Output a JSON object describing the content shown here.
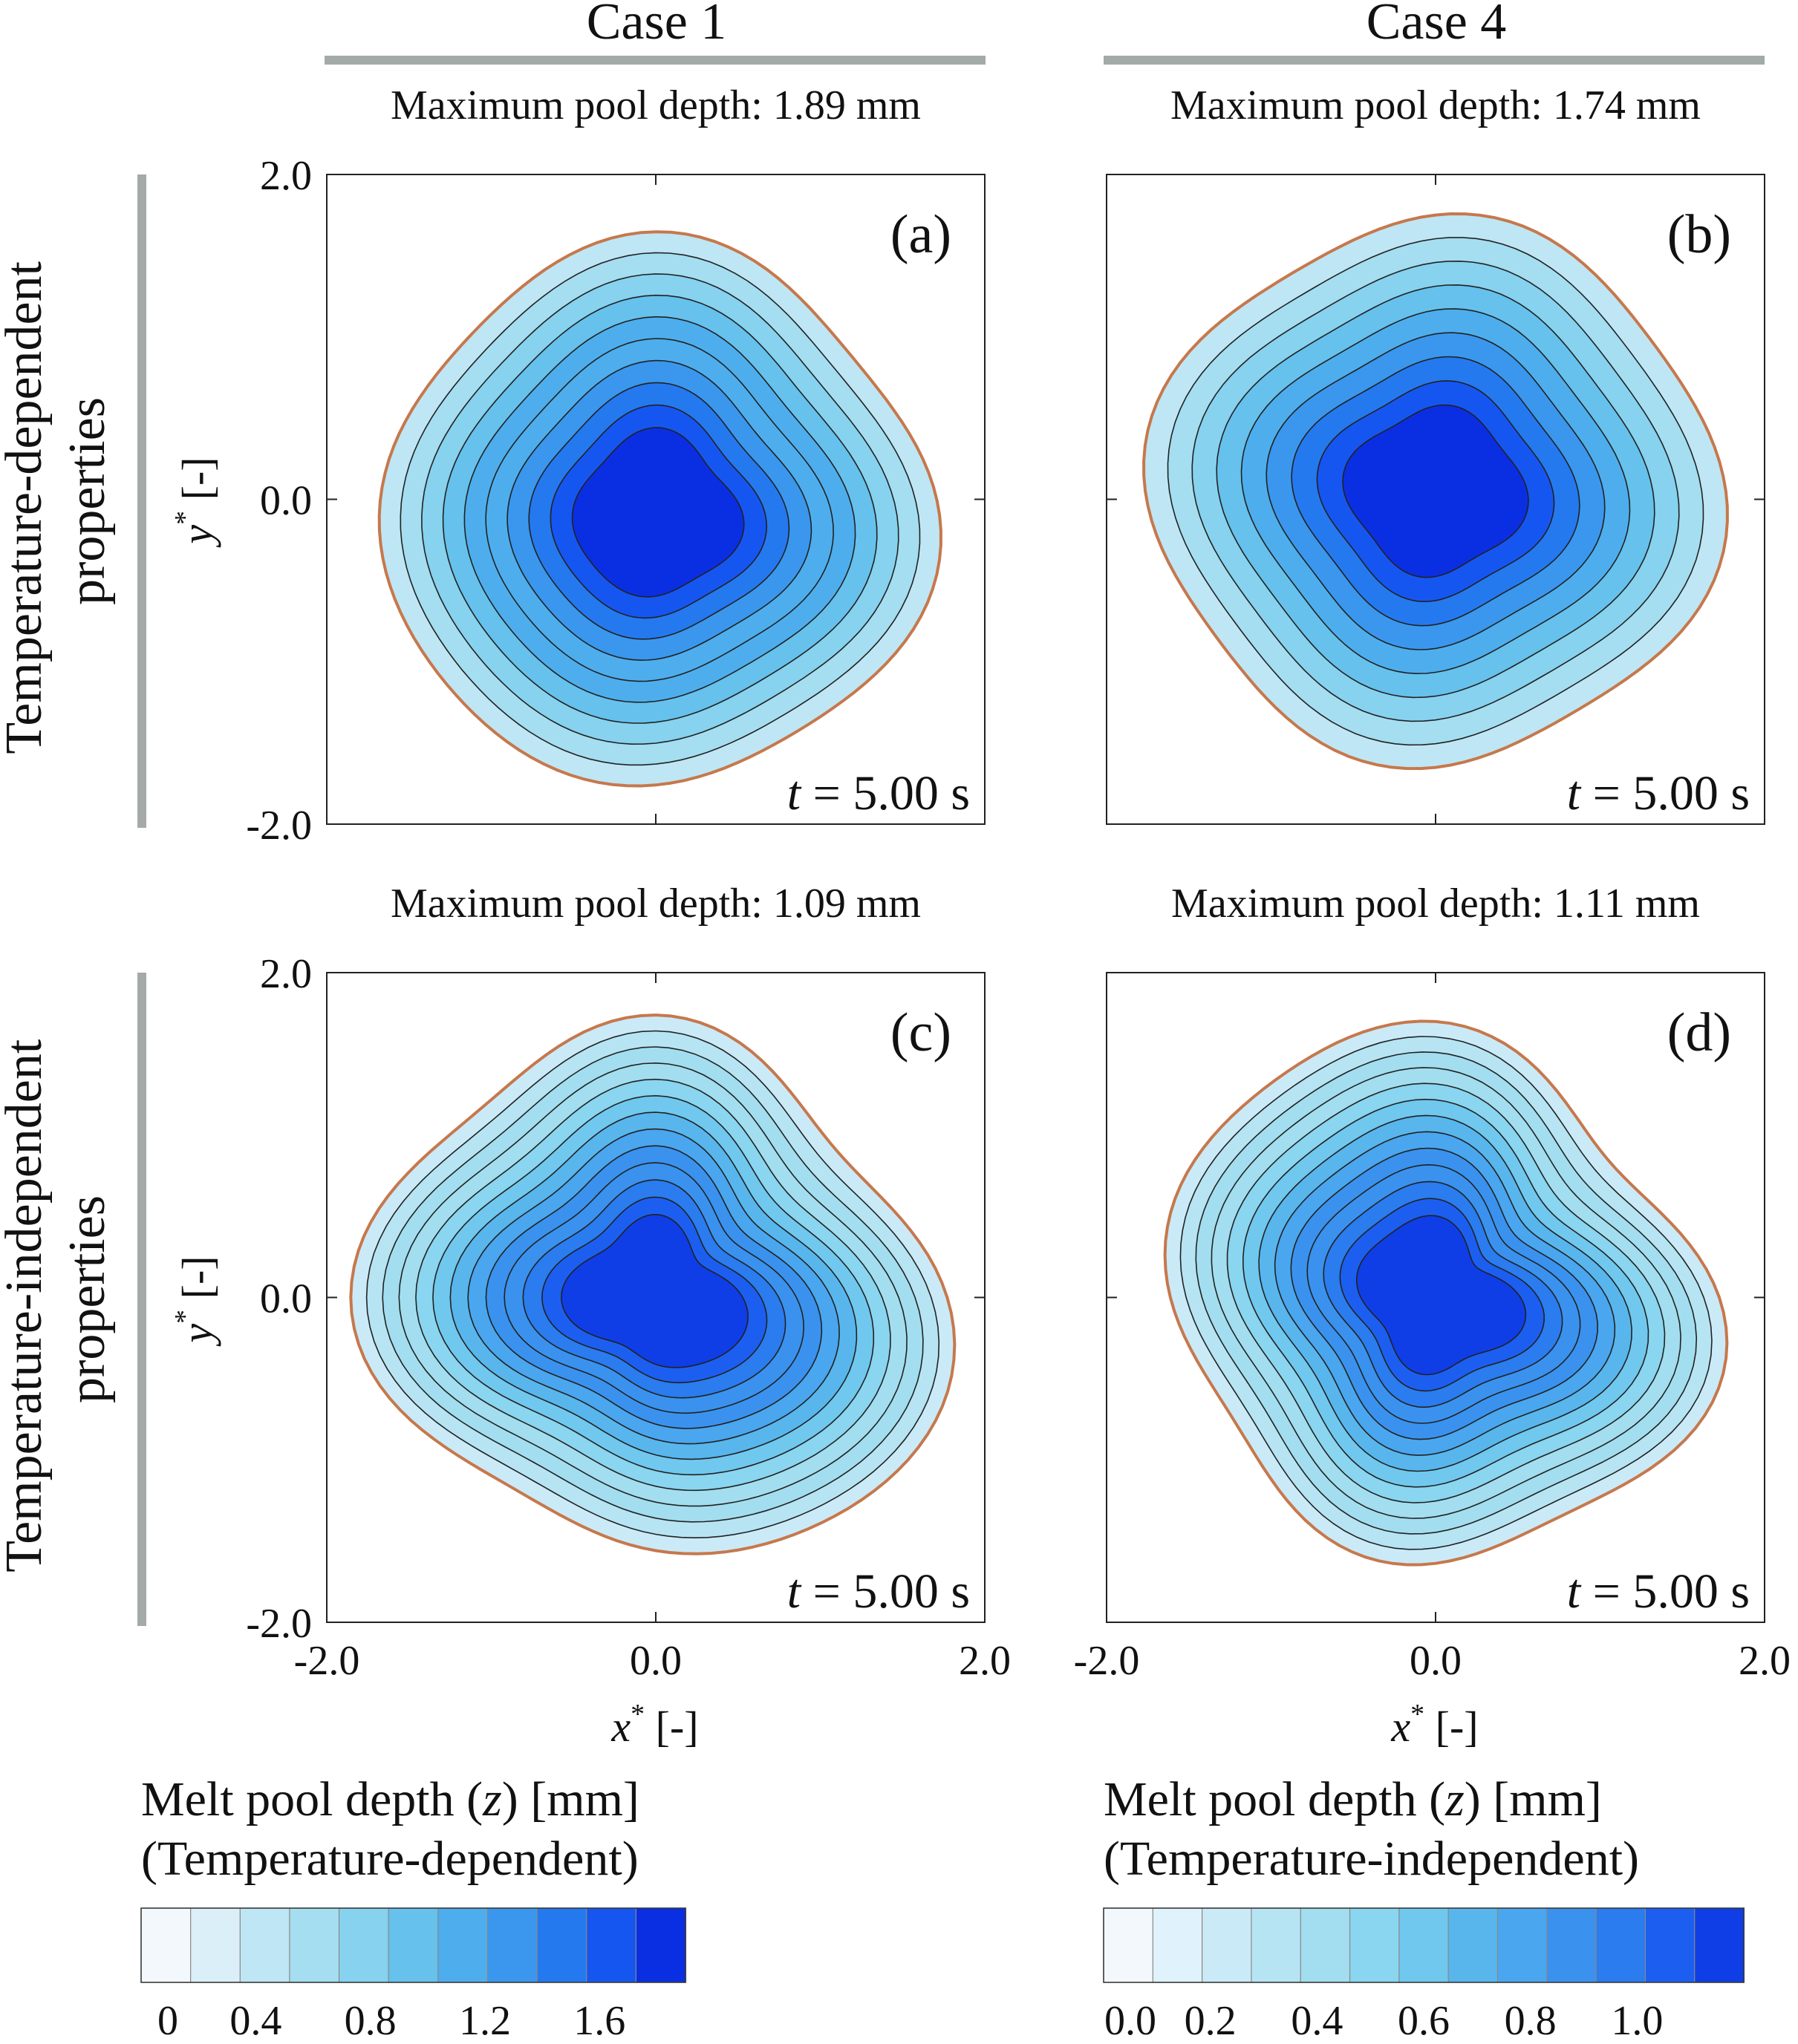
{
  "figure": {
    "columns": [
      {
        "id": "case1",
        "header": "Case 1"
      },
      {
        "id": "case4",
        "header": "Case 4"
      }
    ],
    "rows": [
      {
        "id": "td",
        "label_line1": "Temperature-dependent",
        "label_line2": "properties"
      },
      {
        "id": "ti",
        "label_line1": "Temperature-independent",
        "label_line2": "properties"
      }
    ],
    "axes": {
      "ylabel_symbol": "y",
      "ylabel_sup": "*",
      "ylabel_unit": " [-]",
      "xlabel_symbol": "x",
      "xlabel_sup": "*",
      "xlabel_unit": " [-]",
      "y_ticks": [
        "2.0",
        "0.0",
        "-2.0"
      ],
      "x_ticks": [
        "-2.0",
        "0.0",
        "2.0"
      ]
    }
  },
  "chart_data": [
    {
      "type": "filled-contour",
      "panel": "(a)",
      "title": "Maximum pool depth: 1.89 mm",
      "max_depth_mm": 1.89,
      "time_label": "t = 5.00 s",
      "time_symbol": "t",
      "time_text": " = 5.00 s",
      "xlim": [
        -2.0,
        2.0
      ],
      "ylim": [
        -2.0,
        2.0
      ],
      "center": [
        0.0,
        -0.1
      ],
      "outer_radius": 1.65,
      "colorbar": "temperature-dependent",
      "levels_count": 10
    },
    {
      "type": "filled-contour",
      "panel": "(b)",
      "title": "Maximum pool depth: 1.74 mm",
      "max_depth_mm": 1.74,
      "time_label": "t = 5.00 s",
      "time_symbol": "t",
      "time_text": " = 5.00 s",
      "xlim": [
        -2.0,
        2.0
      ],
      "ylim": [
        -2.0,
        2.0
      ],
      "center": [
        0.0,
        0.05
      ],
      "outer_radius": 1.68,
      "colorbar": "temperature-dependent",
      "levels_count": 9
    },
    {
      "type": "filled-contour",
      "panel": "(c)",
      "title": "Maximum pool depth: 1.09 mm",
      "max_depth_mm": 1.09,
      "time_label": "t = 5.00 s",
      "time_symbol": "t",
      "time_text": " = 5.00 s",
      "xlim": [
        -2.0,
        2.0
      ],
      "ylim": [
        -2.0,
        2.0
      ],
      "center": [
        0.0,
        0.0
      ],
      "outer_radius": 1.65,
      "colorbar": "temperature-independent",
      "levels_count": 13
    },
    {
      "type": "filled-contour",
      "panel": "(d)",
      "title": "Maximum pool depth: 1.11 mm",
      "max_depth_mm": 1.11,
      "time_label": "t = 5.00 s",
      "time_symbol": "t",
      "time_text": " = 5.00 s",
      "xlim": [
        -2.0,
        2.0
      ],
      "ylim": [
        -2.0,
        2.0
      ],
      "center": [
        0.0,
        0.0
      ],
      "outer_radius": 1.6,
      "colorbar": "temperature-independent",
      "levels_count": 13
    }
  ],
  "colorbars": [
    {
      "id": "temperature-dependent",
      "title_line1": "Melt pool depth (z) [mm]",
      "title_pre": "Melt pool depth (",
      "title_sym": "z",
      "title_post": ") [mm]",
      "title_line2": "(Temperature-dependent)",
      "range": [
        0,
        1.9
      ],
      "tick_values": [
        0,
        0.4,
        0.8,
        1.2,
        1.6
      ],
      "tick_labels": [
        "0",
        "0.4",
        "0.8",
        "1.2",
        "1.6"
      ],
      "colors": [
        "#f3f8fd",
        "#dbeff9",
        "#bfe6f4",
        "#a4def0",
        "#86d2ef",
        "#66c1ec",
        "#4eaeed",
        "#3a97ed",
        "#2579ef",
        "#1656f0",
        "#0a2fe2"
      ]
    },
    {
      "id": "temperature-independent",
      "title_line1": "Melt pool depth (z) [mm]",
      "title_pre": "Melt pool depth (",
      "title_sym": "z",
      "title_post": ") [mm]",
      "title_line2": "(Temperature-independent)",
      "range": [
        0,
        1.2
      ],
      "tick_values": [
        0,
        0.2,
        0.4,
        0.6,
        0.8,
        1.0
      ],
      "tick_labels": [
        "0.0",
        "0.2",
        "0.4",
        "0.6",
        "0.8",
        "1.0"
      ],
      "colors": [
        "#f3f8fd",
        "#e0f2fb",
        "#cbeaf8",
        "#b6e4f3",
        "#a2deef",
        "#8ad5ef",
        "#70c8ee",
        "#58b6ed",
        "#4aa6ee",
        "#3a92ee",
        "#2a7cef",
        "#1c5ff0",
        "#0f3ee6"
      ]
    }
  ]
}
